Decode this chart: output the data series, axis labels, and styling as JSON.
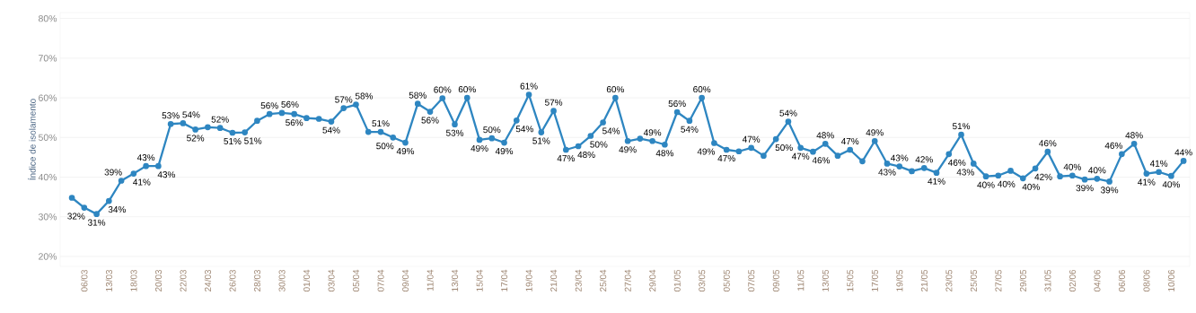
{
  "chart_data": {
    "type": "line",
    "ylabel": "Índice de isolamento",
    "color": "#2e86c1",
    "marker": "circle",
    "line_style": "solid",
    "grid": "y",
    "categories": [
      null,
      "06/03",
      null,
      "13/03",
      null,
      "18/03",
      null,
      "20/03",
      null,
      "22/03",
      null,
      "24/03",
      null,
      "26/03",
      null,
      "28/03",
      null,
      "30/03",
      null,
      "01/04",
      null,
      "03/04",
      null,
      "05/04",
      null,
      "07/04",
      null,
      "09/04",
      null,
      "11/04",
      null,
      "13/04",
      null,
      "15/04",
      null,
      "17/04",
      null,
      "19/04",
      null,
      "21/04",
      null,
      "23/04",
      null,
      "25/04",
      null,
      "27/04",
      null,
      "29/04",
      null,
      "01/05",
      null,
      "03/05",
      null,
      "05/05",
      null,
      "07/05",
      null,
      "09/05",
      null,
      "11/05",
      null,
      "13/05",
      null,
      "15/05",
      null,
      "17/05",
      null,
      "19/05",
      null,
      "21/05",
      null,
      "23/05",
      null,
      "25/05",
      null,
      "27/05",
      null,
      "29/05",
      null,
      "31/05",
      null,
      "02/06",
      null,
      "04/06",
      null,
      "06/06",
      null,
      "08/06",
      null,
      "10/06",
      null
    ],
    "values": [
      34.8,
      32.3,
      30.7,
      34.0,
      39.1,
      40.9,
      42.8,
      42.8,
      53.4,
      53.6,
      52.0,
      52.6,
      52.4,
      51.2,
      51.3,
      54.2,
      55.9,
      56.2,
      55.9,
      54.9,
      54.7,
      54.0,
      57.4,
      58.3,
      51.4,
      51.4,
      50.0,
      48.7,
      58.5,
      56.5,
      59.9,
      53.3,
      60.0,
      49.4,
      49.8,
      48.7,
      54.3,
      60.8,
      51.3,
      56.7,
      46.9,
      47.8,
      50.4,
      53.8,
      60.0,
      49.1,
      49.7,
      49.1,
      48.2,
      56.4,
      54.2,
      60.0,
      48.6,
      46.9,
      46.5,
      47.4,
      45.4,
      49.6,
      54.0,
      47.4,
      46.4,
      48.4,
      45.4,
      46.9,
      44.0,
      49.1,
      43.4,
      42.7,
      41.5,
      42.3,
      41.1,
      45.8,
      50.7,
      43.4,
      40.2,
      40.4,
      41.6,
      39.7,
      42.2,
      46.4,
      40.2,
      40.4,
      39.4,
      39.6,
      38.9,
      45.8,
      48.4,
      40.9,
      41.3,
      40.3,
      44.1
    ],
    "value_labels": [
      null,
      "32%",
      "31%",
      "34%",
      "39%",
      "41%",
      "43%",
      "43%",
      "53%",
      "54%",
      "52%",
      null,
      "52%",
      "51%",
      "51%",
      null,
      "56%",
      "56%",
      "56%",
      null,
      null,
      "54%",
      "57%",
      "58%",
      null,
      "51%",
      "50%",
      "49%",
      "58%",
      "56%",
      "60%",
      "53%",
      "60%",
      "49%",
      "50%",
      "49%",
      "54%",
      "61%",
      "51%",
      "57%",
      "47%",
      "48%",
      "50%",
      "54%",
      "60%",
      "49%",
      null,
      "49%",
      "48%",
      "56%",
      "54%",
      "60%",
      "49%",
      "47%",
      null,
      "47%",
      null,
      "50%",
      "54%",
      "47%",
      "46%",
      "48%",
      null,
      "47%",
      null,
      "49%",
      "43%",
      "43%",
      null,
      "42%",
      "41%",
      "46%",
      "51%",
      "43%",
      "40%",
      "40%",
      null,
      "40%",
      "42%",
      "46%",
      null,
      "40%",
      "39%",
      "40%",
      "39%",
      "46%",
      "48%",
      "41%",
      "41%",
      "40%",
      "44%"
    ],
    "ylim": [
      17.5,
      81.5
    ],
    "yticks": [
      {
        "value": 20,
        "label": "20%"
      },
      {
        "value": 30,
        "label": "30%"
      },
      {
        "value": 40,
        "label": "40%"
      },
      {
        "value": 50,
        "label": "50%"
      },
      {
        "value": 60,
        "label": "60%"
      },
      {
        "value": 70,
        "label": "70%"
      },
      {
        "value": 80,
        "label": "80%"
      }
    ]
  }
}
